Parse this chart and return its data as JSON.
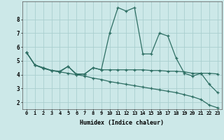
{
  "xlabel": "Humidex (Indice chaleur)",
  "x": [
    0,
    1,
    2,
    3,
    4,
    5,
    6,
    7,
    8,
    9,
    10,
    11,
    12,
    13,
    14,
    15,
    16,
    17,
    18,
    19,
    20,
    21,
    22,
    23
  ],
  "series1": [
    5.6,
    4.7,
    4.5,
    4.3,
    4.2,
    4.6,
    4.0,
    4.05,
    4.5,
    4.35,
    7.0,
    8.85,
    8.6,
    8.85,
    5.5,
    5.5,
    7.0,
    6.8,
    5.2,
    4.1,
    3.9,
    4.1,
    3.3,
    2.7
  ],
  "series2": [
    5.6,
    4.7,
    4.5,
    4.3,
    4.25,
    4.6,
    4.05,
    4.05,
    4.5,
    4.35,
    4.35,
    4.35,
    4.35,
    4.35,
    4.35,
    4.3,
    4.3,
    4.25,
    4.25,
    4.2,
    4.1,
    4.1,
    4.1,
    4.05
  ],
  "series3": [
    5.6,
    4.7,
    4.45,
    4.3,
    4.2,
    4.1,
    4.0,
    3.9,
    3.75,
    3.65,
    3.5,
    3.4,
    3.3,
    3.2,
    3.1,
    3.0,
    2.9,
    2.8,
    2.7,
    2.55,
    2.4,
    2.2,
    1.8,
    1.6
  ],
  "color": "#2d6e63",
  "bg_color": "#cce8e8",
  "grid_color": "#aacfcf",
  "ylim": [
    1.5,
    9.3
  ],
  "yticks": [
    2,
    3,
    4,
    5,
    6,
    7,
    8
  ],
  "xlim": [
    -0.5,
    23.5
  ],
  "label_fontsize": 5.0,
  "tick_fontsize": 5.5
}
